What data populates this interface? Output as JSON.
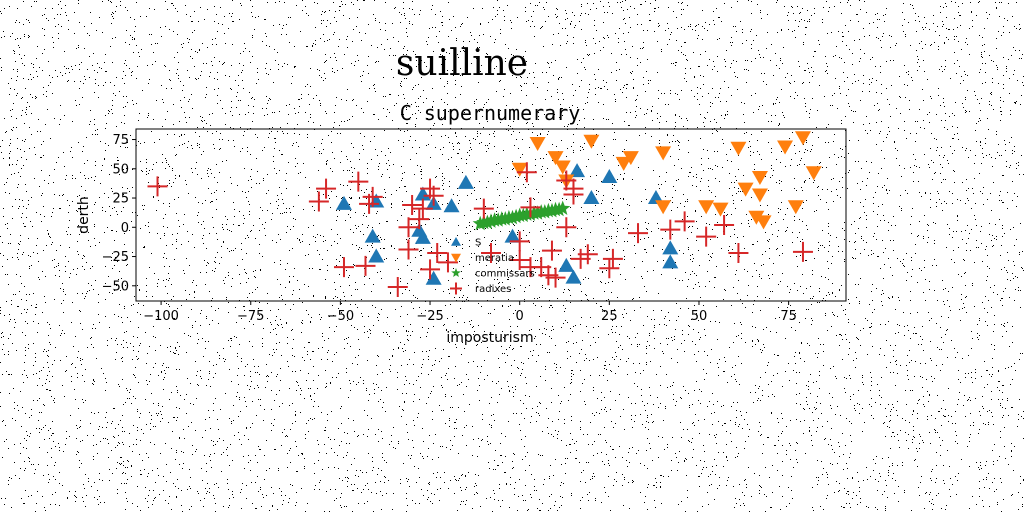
{
  "figure": {
    "suptitle": "suilline"
  },
  "chart_data": {
    "type": "scatter",
    "title": "C supernumerary",
    "xlabel": "imposturism",
    "ylabel": "derth",
    "xlim": [
      -107,
      91
    ],
    "ylim": [
      -63,
      84
    ],
    "xticks": [
      -100,
      -75,
      -50,
      -25,
      0,
      25,
      50,
      75
    ],
    "xtick_labels": [
      "−100",
      "−75",
      "−50",
      "−25",
      "0",
      "25",
      "50",
      "75"
    ],
    "yticks": [
      -50,
      -25,
      0,
      25,
      50,
      75
    ],
    "ytick_labels": [
      "−50",
      "−25",
      "0",
      "25",
      "50",
      "75"
    ],
    "grid": false,
    "legend_position": "center",
    "series": [
      {
        "name": "S",
        "marker": "triangle-up",
        "color": "#1f77b4",
        "points": [
          [
            -49,
            20
          ],
          [
            -40,
            22
          ],
          [
            -41,
            -8
          ],
          [
            -40,
            -25
          ],
          [
            -27,
            28
          ],
          [
            -28,
            -3
          ],
          [
            -27,
            -9
          ],
          [
            -24,
            20
          ],
          [
            -19,
            18
          ],
          [
            -15,
            38
          ],
          [
            -24,
            -44
          ],
          [
            -2,
            -8
          ],
          [
            16,
            48
          ],
          [
            13,
            -33
          ],
          [
            15,
            -43
          ],
          [
            20,
            25
          ],
          [
            25,
            43
          ],
          [
            38,
            25
          ],
          [
            42,
            -18
          ],
          [
            42,
            -30
          ]
        ]
      },
      {
        "name": "meratia",
        "marker": "triangle-down",
        "color": "#ff7f0e",
        "points": [
          [
            0,
            50
          ],
          [
            5,
            72
          ],
          [
            10,
            60
          ],
          [
            12,
            52
          ],
          [
            13,
            40
          ],
          [
            20,
            74
          ],
          [
            29,
            55
          ],
          [
            31,
            60
          ],
          [
            40,
            64
          ],
          [
            40,
            18
          ],
          [
            52,
            18
          ],
          [
            56,
            16
          ],
          [
            61,
            68
          ],
          [
            63,
            33
          ],
          [
            67,
            43
          ],
          [
            67,
            28
          ],
          [
            66,
            9
          ],
          [
            68,
            5
          ],
          [
            74,
            69
          ],
          [
            77,
            18
          ],
          [
            79,
            77
          ],
          [
            82,
            47
          ]
        ]
      },
      {
        "name": "commissars",
        "marker": "star",
        "color": "#2ca02c",
        "points": [
          [
            -11,
            3
          ],
          [
            -10,
            4
          ],
          [
            -9,
            4
          ],
          [
            -8,
            5
          ],
          [
            -7,
            6
          ],
          [
            -6,
            6
          ],
          [
            -5,
            7
          ],
          [
            -4,
            7
          ],
          [
            -3,
            8
          ],
          [
            -2,
            8
          ],
          [
            -1,
            9
          ],
          [
            0,
            10
          ],
          [
            1,
            10
          ],
          [
            2,
            11
          ],
          [
            3,
            11
          ],
          [
            4,
            12
          ],
          [
            5,
            12
          ],
          [
            6,
            13
          ],
          [
            7,
            13
          ],
          [
            8,
            14
          ],
          [
            9,
            14
          ],
          [
            10,
            15
          ],
          [
            11,
            15
          ],
          [
            12,
            16
          ]
        ]
      },
      {
        "name": "radixes",
        "marker": "plus",
        "color": "#d62728",
        "points": [
          [
            -101,
            35
          ],
          [
            -54,
            33
          ],
          [
            -56,
            22
          ],
          [
            -45,
            39
          ],
          [
            -42,
            20
          ],
          [
            -41,
            26
          ],
          [
            -49,
            -34
          ],
          [
            -43,
            -33
          ],
          [
            -34,
            -51
          ],
          [
            -31,
            0
          ],
          [
            -30,
            19
          ],
          [
            -31,
            -19
          ],
          [
            -28,
            7
          ],
          [
            -27,
            16
          ],
          [
            -25,
            33
          ],
          [
            -24,
            27
          ],
          [
            -23,
            -22
          ],
          [
            -25,
            -36
          ],
          [
            -20,
            -30
          ],
          [
            -10,
            16
          ],
          [
            -8,
            -22
          ],
          [
            0,
            -12
          ],
          [
            0,
            -28
          ],
          [
            2,
            47
          ],
          [
            3,
            17
          ],
          [
            3,
            -34
          ],
          [
            6,
            -34
          ],
          [
            8,
            -41
          ],
          [
            9,
            -20
          ],
          [
            10,
            -43
          ],
          [
            13,
            0
          ],
          [
            13,
            40
          ],
          [
            15,
            33
          ],
          [
            15,
            28
          ],
          [
            17,
            -27
          ],
          [
            19,
            -23
          ],
          [
            25,
            -35
          ],
          [
            26,
            -27
          ],
          [
            33,
            -5
          ],
          [
            42,
            -2
          ],
          [
            46,
            5
          ],
          [
            52,
            -8
          ],
          [
            57,
            2
          ],
          [
            61,
            -22
          ],
          [
            79,
            -21
          ]
        ]
      }
    ]
  }
}
